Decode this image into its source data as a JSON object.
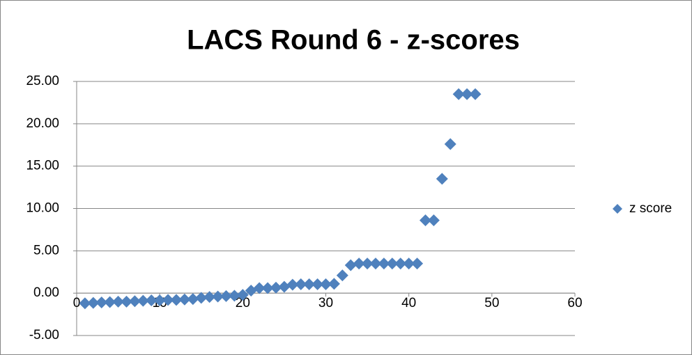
{
  "chart_data": {
    "type": "scatter",
    "title": "LACS Round 6 - z-scores",
    "series": [
      {
        "name": "z score",
        "color": "#4f81bd",
        "x": [
          1,
          2,
          3,
          4,
          5,
          6,
          7,
          8,
          9,
          10,
          11,
          12,
          13,
          14,
          15,
          16,
          17,
          18,
          19,
          20,
          21,
          22,
          23,
          24,
          25,
          26,
          27,
          28,
          29,
          30,
          31,
          32,
          33,
          34,
          35,
          36,
          37,
          38,
          39,
          40,
          41,
          42,
          43,
          44,
          45,
          46,
          47,
          48
        ],
        "values": [
          -1.2,
          -1.15,
          -1.1,
          -1.05,
          -1.0,
          -1.0,
          -0.95,
          -0.9,
          -0.85,
          -0.85,
          -0.8,
          -0.8,
          -0.75,
          -0.7,
          -0.55,
          -0.45,
          -0.4,
          -0.35,
          -0.3,
          -0.2,
          0.3,
          0.6,
          0.6,
          0.65,
          0.75,
          1.0,
          1.05,
          1.05,
          1.05,
          1.05,
          1.1,
          2.1,
          3.3,
          3.5,
          3.5,
          3.5,
          3.5,
          3.5,
          3.5,
          3.5,
          3.5,
          8.6,
          8.6,
          13.5,
          17.6,
          23.5,
          23.5,
          23.5
        ]
      }
    ],
    "xlim": [
      0,
      60
    ],
    "xticks": [
      0,
      10,
      20,
      30,
      40,
      50,
      60
    ],
    "ylim": [
      -5,
      25
    ],
    "yticks": [
      {
        "value": -5,
        "label": "-5.00"
      },
      {
        "value": 0,
        "label": "0.00"
      },
      {
        "value": 5,
        "label": "5.00"
      },
      {
        "value": 10,
        "label": "10.00"
      },
      {
        "value": 15,
        "label": "15.00"
      },
      {
        "value": 20,
        "label": "20.00"
      },
      {
        "value": 25,
        "label": "25.00"
      }
    ],
    "grid": true,
    "legend": "right"
  }
}
